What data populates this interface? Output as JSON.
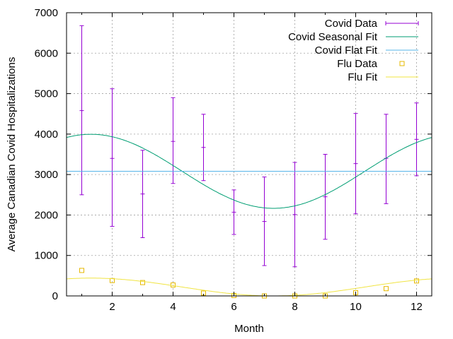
{
  "chart_data": {
    "type": "line",
    "title": "",
    "xlabel": "Month",
    "ylabel": "Average Canadian Covid Hospitalizations",
    "xlim": [
      0.5,
      12.5
    ],
    "ylim": [
      0,
      7000
    ],
    "x_ticks": [
      2,
      4,
      6,
      8,
      10,
      12
    ],
    "x_tick_labels": [
      "2",
      "4",
      "6",
      "8",
      "10",
      "12"
    ],
    "y_ticks": [
      0,
      1000,
      2000,
      3000,
      4000,
      5000,
      6000,
      7000
    ],
    "y_tick_labels": [
      "0",
      "1000",
      "2000",
      "3000",
      "4000",
      "5000",
      "6000",
      "7000"
    ],
    "grid": true,
    "legend_position": "top-right",
    "series": [
      {
        "name": "Covid Data",
        "kind": "errorbars",
        "color": "#9400d3",
        "x": [
          1,
          2,
          3,
          4,
          5,
          6,
          7,
          8,
          9,
          10,
          11,
          12
        ],
        "y": [
          4580,
          3400,
          2520,
          3820,
          3670,
          2070,
          1840,
          2010,
          2450,
          3270,
          3400,
          3870
        ],
        "y_low": [
          2500,
          1720,
          1440,
          2780,
          2850,
          1520,
          750,
          720,
          1400,
          2030,
          2280,
          2970
        ],
        "y_high": [
          6680,
          5120,
          3600,
          4900,
          4490,
          2620,
          2940,
          3300,
          3500,
          4510,
          4490,
          4770
        ]
      },
      {
        "name": "Covid Seasonal Fit",
        "kind": "curve",
        "color": "#009e73",
        "model": "sinusoid",
        "mean": 3080,
        "amplitude": 915,
        "peak_month": 1.3,
        "period": 12
      },
      {
        "name": "Covid Flat Fit",
        "kind": "hline",
        "color": "#56b4e9",
        "y": 3080
      },
      {
        "name": "Flu Data",
        "kind": "points",
        "color": "#e6b800",
        "x": [
          1,
          2,
          3,
          4,
          5,
          6,
          7,
          8,
          9,
          10,
          11,
          12
        ],
        "y": [
          630,
          380,
          330,
          270,
          70,
          10,
          0,
          0,
          0,
          80,
          180,
          370
        ]
      },
      {
        "name": "Flu Fit",
        "kind": "curve",
        "color": "#f0e442",
        "model": "sinusoid",
        "mean": 220,
        "amplitude": 220,
        "peak_month": 1.3,
        "period": 12
      }
    ]
  }
}
